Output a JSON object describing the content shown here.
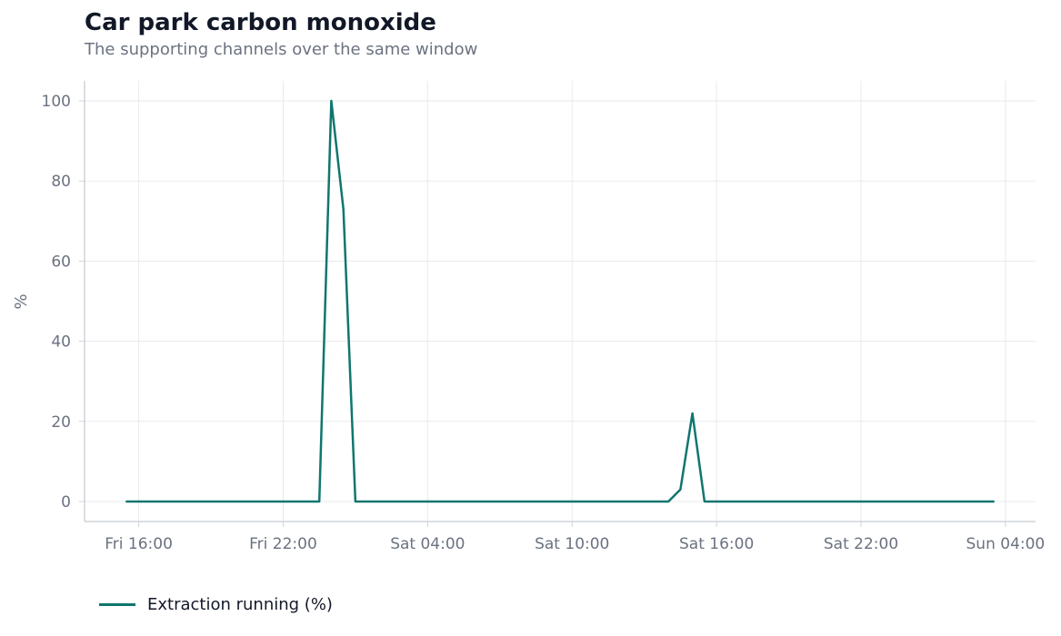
{
  "chart_data": {
    "type": "line",
    "title": "Car park carbon monoxide",
    "subtitle": "The supporting channels over the same window",
    "xlabel": "",
    "ylabel": "%",
    "x_ticks": [
      "Fri 16:00",
      "Fri 22:00",
      "Sat 04:00",
      "Sat 10:00",
      "Sat 16:00",
      "Sat 22:00",
      "Sun 04:00"
    ],
    "y_ticks": [
      0,
      20,
      40,
      60,
      80,
      100
    ],
    "ylim": [
      -5,
      105
    ],
    "xlim": [
      "Fri 13:45",
      "Sun 05:15"
    ],
    "grid": true,
    "legend_position": "bottom-left",
    "series": [
      {
        "name": "Extraction running (%)",
        "color": "#0f766e",
        "x": [
          "Fri 15:30",
          "Fri 23:30",
          "Sat 00:00",
          "Sat 00:30",
          "Sat 01:00",
          "Sat 14:00",
          "Sat 14:30",
          "Sat 15:00",
          "Sat 15:30",
          "Sun 03:30"
        ],
        "y": [
          0,
          0,
          100,
          73,
          0,
          0,
          3,
          22,
          0,
          0
        ]
      }
    ]
  }
}
